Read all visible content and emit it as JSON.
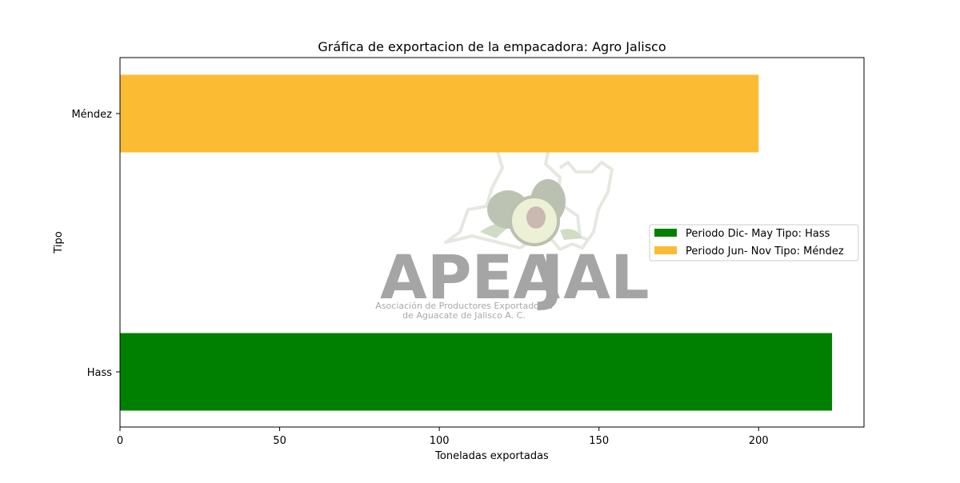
{
  "chart_data": {
    "type": "bar",
    "orientation": "horizontal",
    "title": "Gráfica de exportacion de la empacadora: Agro Jalisco",
    "xlabel": "Toneladas exportadas",
    "ylabel": "Tipo",
    "categories": [
      "Hass",
      "Méndez"
    ],
    "values": [
      223,
      200
    ],
    "colors": [
      "#008000",
      "#fbbc33"
    ],
    "xlim": [
      0,
      233
    ],
    "xticks": [
      0,
      50,
      100,
      150,
      200
    ],
    "grid": false,
    "legend": {
      "placement": "center-right",
      "entries": [
        {
          "label": "Periodo Dic- May Tipo: Hass",
          "color": "#008000"
        },
        {
          "label": "Periodo Jun- Nov Tipo: Méndez",
          "color": "#fbbc33"
        }
      ]
    }
  },
  "watermark": {
    "text_left": "APEA",
    "text_right": "JAL",
    "line1": "Asociación de Productores Exportadores",
    "line2": "de Aguacate de Jalisco A. C.",
    "color_left": "#8a8a8a",
    "color_right": "#a9b39c"
  }
}
